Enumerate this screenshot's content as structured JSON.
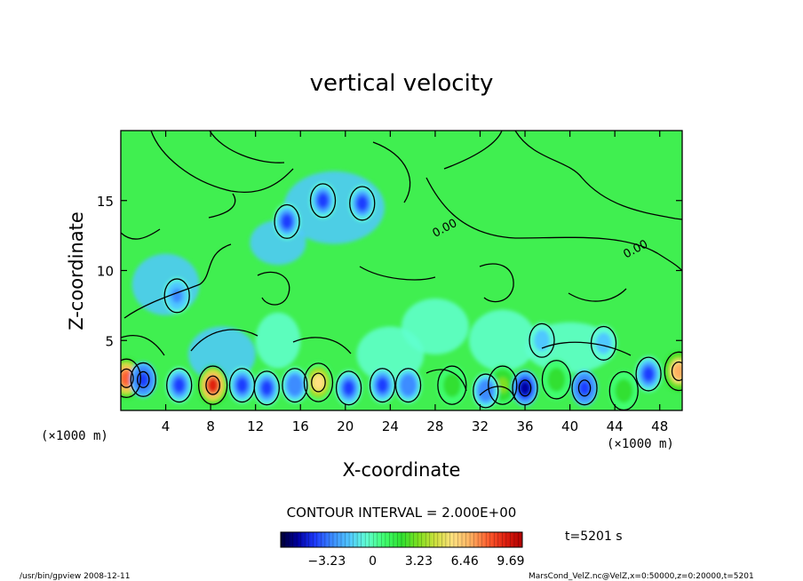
{
  "chart_data": {
    "type": "heatmap",
    "title": "vertical velocity",
    "xlabel": "X-coordinate",
    "ylabel": "Z-coordinate",
    "x_unit_left": "(×1000 m)",
    "x_unit_right": "(×1000 m)",
    "xlim": [
      0,
      50
    ],
    "ylim": [
      0,
      20
    ],
    "x_ticks": [
      4,
      8,
      12,
      16,
      20,
      24,
      28,
      32,
      36,
      40,
      44,
      48
    ],
    "y_ticks": [
      5,
      10,
      15
    ],
    "contour_labels": [
      {
        "text": "0.00",
        "x": 29.0,
        "y": 12.8
      },
      {
        "text": "0.00",
        "x": 46.0,
        "y": 11.3
      }
    ],
    "contour_interval_text": "CONTOUR INTERVAL = 2.000E+00",
    "time_text": "t=5201 s",
    "colorbar": {
      "min": -6.46,
      "max": 10.5,
      "tick_labels": [
        "-3.23",
        "0",
        "3.23",
        "6.46",
        "9.69"
      ],
      "tick_values": [
        -3.23,
        0,
        3.23,
        6.46,
        9.69
      ],
      "colors": [
        "#000033",
        "#0000a0",
        "#1e3cff",
        "#3c8cff",
        "#50c8ff",
        "#60ffd0",
        "#40ff70",
        "#30e030",
        "#80e020",
        "#d0e040",
        "#ffe080",
        "#ffb060",
        "#ff6030",
        "#e02010",
        "#b00000"
      ]
    },
    "features": [
      {
        "kind": "up",
        "x": 0.5,
        "y": 2.3,
        "value": 8.5
      },
      {
        "kind": "up",
        "x": 8.2,
        "y": 1.8,
        "value": 9.5
      },
      {
        "kind": "up",
        "x": 17.6,
        "y": 2.0,
        "value": 5.5
      },
      {
        "kind": "up",
        "x": 49.7,
        "y": 2.8,
        "value": 7.0
      },
      {
        "kind": "up",
        "x": 29.5,
        "y": 1.8,
        "value": 2.5
      },
      {
        "kind": "up",
        "x": 34.0,
        "y": 1.8,
        "value": 3.0
      },
      {
        "kind": "up",
        "x": 38.8,
        "y": 2.2,
        "value": 2.0
      },
      {
        "kind": "up",
        "x": 44.8,
        "y": 1.4,
        "value": 2.0
      },
      {
        "kind": "down",
        "x": 2.0,
        "y": 2.2,
        "value": -4.5
      },
      {
        "kind": "down",
        "x": 5.2,
        "y": 1.8,
        "value": -4.0
      },
      {
        "kind": "down",
        "x": 10.8,
        "y": 1.8,
        "value": -3.5
      },
      {
        "kind": "down",
        "x": 13.0,
        "y": 1.6,
        "value": -4.0
      },
      {
        "kind": "down",
        "x": 15.5,
        "y": 1.8,
        "value": -3.0
      },
      {
        "kind": "down",
        "x": 20.3,
        "y": 1.6,
        "value": -4.0
      },
      {
        "kind": "down",
        "x": 23.3,
        "y": 1.8,
        "value": -3.5
      },
      {
        "kind": "down",
        "x": 25.6,
        "y": 1.8,
        "value": -3.0
      },
      {
        "kind": "down",
        "x": 32.5,
        "y": 1.4,
        "value": -3.0
      },
      {
        "kind": "down",
        "x": 36.0,
        "y": 1.6,
        "value": -5.0
      },
      {
        "kind": "down",
        "x": 41.3,
        "y": 1.6,
        "value": -4.5
      },
      {
        "kind": "down",
        "x": 47.0,
        "y": 2.6,
        "value": -3.5
      },
      {
        "kind": "down",
        "x": 18.0,
        "y": 15.0,
        "value": -4.0
      },
      {
        "kind": "down",
        "x": 14.8,
        "y": 13.5,
        "value": -3.5
      },
      {
        "kind": "down",
        "x": 21.5,
        "y": 14.8,
        "value": -3.5
      },
      {
        "kind": "down",
        "x": 5.0,
        "y": 8.2,
        "value": -2.5
      },
      {
        "kind": "down",
        "x": 37.5,
        "y": 5.0,
        "value": -2.0
      },
      {
        "kind": "down",
        "x": 43.0,
        "y": 4.8,
        "value": -1.5
      }
    ]
  },
  "footer": {
    "left": "/usr/bin/gpview   2008-12-11",
    "right": "MarsCond_VelZ.nc@VelZ,x=0:50000,z=0:20000,t=5201"
  }
}
